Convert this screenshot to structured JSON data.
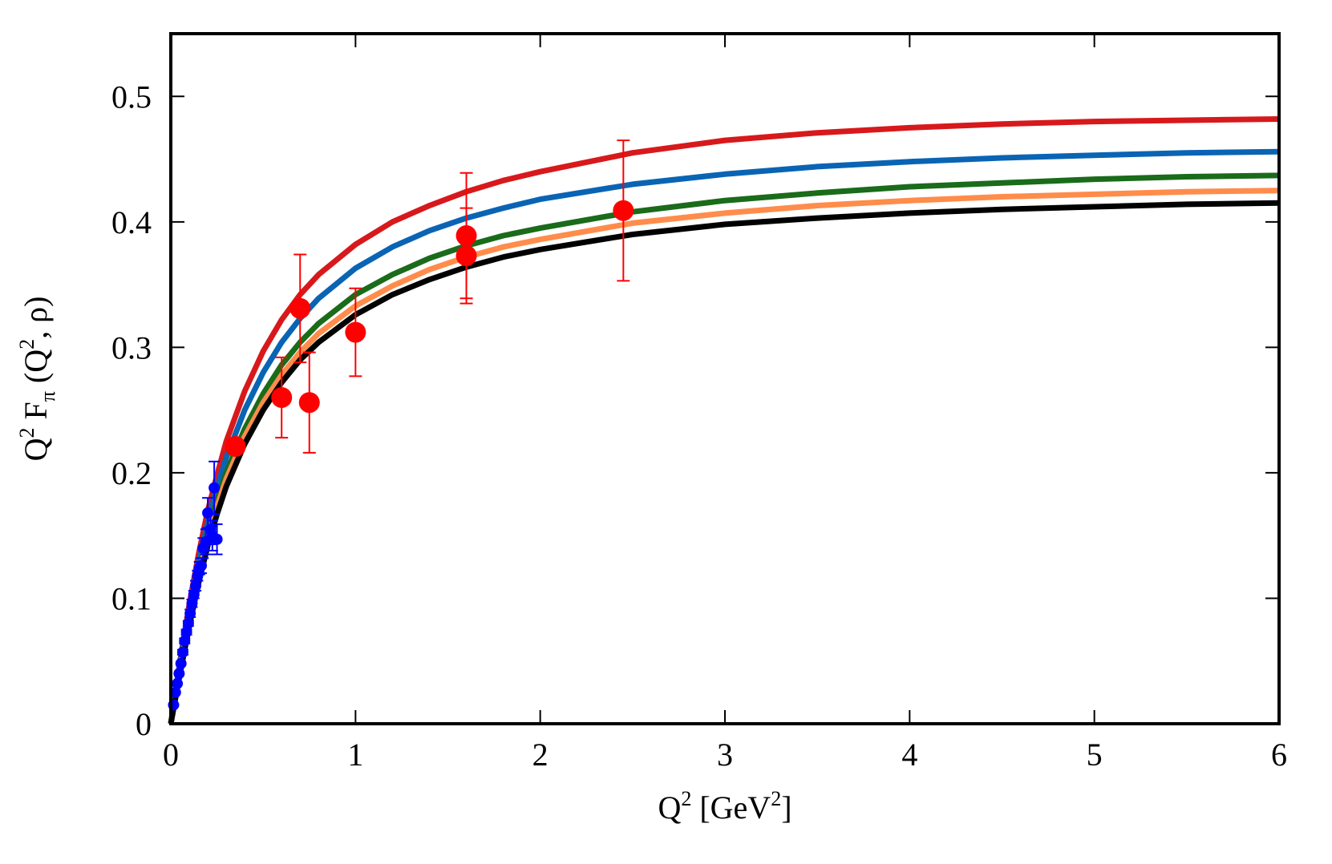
{
  "chart_data": {
    "type": "scatter",
    "xlabel": {
      "base": "Q",
      "sup": "2",
      "unit_open": " [GeV",
      "unit_sup": "2",
      "unit_close": "]"
    },
    "ylabel": {
      "q": "Q",
      "q_sup": "2",
      "f": " F",
      "f_sub": "π",
      "arg_open": " (Q",
      "arg_sup": "2",
      "arg_close": ", ρ)"
    },
    "xlim": [
      0,
      6
    ],
    "ylim": [
      0,
      0.55
    ],
    "xticks": [
      0,
      1,
      2,
      3,
      4,
      5,
      6
    ],
    "xtick_labels": [
      "0",
      "1",
      "2",
      "3",
      "4",
      "5",
      "6"
    ],
    "yticks": [
      0,
      0.1,
      0.2,
      0.3,
      0.4,
      0.5
    ],
    "ytick_labels": [
      "0",
      "0.1",
      "0.2",
      "0.3",
      "0.4",
      "0.5"
    ],
    "grid": false,
    "legend": "none",
    "curves": [
      {
        "color": "#d7191c",
        "x": [
          0.0,
          0.05,
          0.1,
          0.15,
          0.2,
          0.25,
          0.3,
          0.4,
          0.5,
          0.6,
          0.7,
          0.8,
          1.0,
          1.2,
          1.4,
          1.6,
          1.8,
          2.0,
          2.5,
          3.0,
          3.5,
          4.0,
          4.5,
          5.0,
          5.5,
          6.0
        ],
        "y": [
          0.0,
          0.05,
          0.095,
          0.135,
          0.17,
          0.198,
          0.225,
          0.265,
          0.297,
          0.322,
          0.342,
          0.358,
          0.382,
          0.4,
          0.413,
          0.424,
          0.433,
          0.44,
          0.455,
          0.465,
          0.471,
          0.475,
          0.478,
          0.48,
          0.481,
          0.482
        ]
      },
      {
        "color": "#0a64b4",
        "x": [
          0.0,
          0.05,
          0.1,
          0.15,
          0.2,
          0.25,
          0.3,
          0.4,
          0.5,
          0.6,
          0.7,
          0.8,
          1.0,
          1.2,
          1.4,
          1.6,
          1.8,
          2.0,
          2.5,
          3.0,
          3.5,
          4.0,
          4.5,
          5.0,
          5.5,
          6.0
        ],
        "y": [
          0.0,
          0.048,
          0.09,
          0.128,
          0.16,
          0.188,
          0.212,
          0.25,
          0.28,
          0.304,
          0.323,
          0.339,
          0.363,
          0.38,
          0.393,
          0.403,
          0.411,
          0.418,
          0.43,
          0.438,
          0.444,
          0.448,
          0.451,
          0.453,
          0.455,
          0.456
        ]
      },
      {
        "color": "#1a6b1a",
        "x": [
          0.0,
          0.05,
          0.1,
          0.15,
          0.2,
          0.25,
          0.3,
          0.4,
          0.5,
          0.6,
          0.7,
          0.8,
          1.0,
          1.2,
          1.4,
          1.6,
          1.8,
          2.0,
          2.5,
          3.0,
          3.5,
          4.0,
          4.5,
          5.0,
          5.5,
          6.0
        ],
        "y": [
          0.0,
          0.045,
          0.085,
          0.12,
          0.152,
          0.178,
          0.2,
          0.235,
          0.263,
          0.286,
          0.304,
          0.319,
          0.342,
          0.358,
          0.371,
          0.381,
          0.389,
          0.395,
          0.408,
          0.417,
          0.423,
          0.428,
          0.431,
          0.434,
          0.436,
          0.437
        ]
      },
      {
        "color": "#ff8c4a",
        "x": [
          0.0,
          0.05,
          0.1,
          0.15,
          0.2,
          0.25,
          0.3,
          0.4,
          0.5,
          0.6,
          0.7,
          0.8,
          1.0,
          1.2,
          1.4,
          1.6,
          1.8,
          2.0,
          2.5,
          3.0,
          3.5,
          4.0,
          4.5,
          5.0,
          5.5,
          6.0
        ],
        "y": [
          0.0,
          0.043,
          0.082,
          0.117,
          0.148,
          0.173,
          0.195,
          0.229,
          0.256,
          0.278,
          0.296,
          0.311,
          0.333,
          0.349,
          0.362,
          0.372,
          0.38,
          0.386,
          0.399,
          0.407,
          0.413,
          0.417,
          0.42,
          0.422,
          0.424,
          0.425
        ]
      },
      {
        "color": "#000000",
        "x": [
          0.0,
          0.05,
          0.1,
          0.15,
          0.2,
          0.25,
          0.3,
          0.4,
          0.5,
          0.6,
          0.7,
          0.8,
          1.0,
          1.2,
          1.4,
          1.6,
          1.8,
          2.0,
          2.5,
          3.0,
          3.5,
          4.0,
          4.5,
          5.0,
          5.5,
          6.0
        ],
        "y": [
          0.0,
          0.04,
          0.078,
          0.112,
          0.142,
          0.167,
          0.189,
          0.223,
          0.25,
          0.272,
          0.29,
          0.304,
          0.326,
          0.342,
          0.354,
          0.364,
          0.372,
          0.378,
          0.39,
          0.398,
          0.403,
          0.407,
          0.41,
          0.412,
          0.414,
          0.415
        ]
      }
    ],
    "series": [
      {
        "color": "#ff0000",
        "marker": "large-circle",
        "points": [
          {
            "x": 0.35,
            "y": 0.221,
            "err": 0.0
          },
          {
            "x": 0.6,
            "y": 0.26,
            "err": 0.032
          },
          {
            "x": 0.7,
            "y": 0.331,
            "err": 0.043
          },
          {
            "x": 0.75,
            "y": 0.256,
            "err": 0.04
          },
          {
            "x": 1.0,
            "y": 0.312,
            "err": 0.035
          },
          {
            "x": 1.6,
            "y": 0.389,
            "err": 0.05
          },
          {
            "x": 1.6,
            "y": 0.373,
            "err": 0.038
          },
          {
            "x": 2.45,
            "y": 0.409,
            "err": 0.056
          }
        ]
      },
      {
        "color": "#0000ff",
        "marker": "small-circle",
        "points": [
          {
            "x": 0.015,
            "y": 0.015,
            "err": 0.0
          },
          {
            "x": 0.025,
            "y": 0.025,
            "err": 0.0
          },
          {
            "x": 0.035,
            "y": 0.032,
            "err": 0.0
          },
          {
            "x": 0.045,
            "y": 0.04,
            "err": 0.0
          },
          {
            "x": 0.055,
            "y": 0.048,
            "err": 0.0
          },
          {
            "x": 0.065,
            "y": 0.057,
            "err": 0.002
          },
          {
            "x": 0.075,
            "y": 0.066,
            "err": 0.002
          },
          {
            "x": 0.085,
            "y": 0.073,
            "err": 0.002
          },
          {
            "x": 0.095,
            "y": 0.08,
            "err": 0.002
          },
          {
            "x": 0.105,
            "y": 0.088,
            "err": 0.003
          },
          {
            "x": 0.115,
            "y": 0.096,
            "err": 0.003
          },
          {
            "x": 0.125,
            "y": 0.103,
            "err": 0.003
          },
          {
            "x": 0.135,
            "y": 0.11,
            "err": 0.004
          },
          {
            "x": 0.145,
            "y": 0.118,
            "err": 0.004
          },
          {
            "x": 0.155,
            "y": 0.124,
            "err": 0.005
          },
          {
            "x": 0.165,
            "y": 0.126,
            "err": 0.006
          },
          {
            "x": 0.175,
            "y": 0.14,
            "err": 0.008
          },
          {
            "x": 0.19,
            "y": 0.145,
            "err": 0.01
          },
          {
            "x": 0.2,
            "y": 0.168,
            "err": 0.012
          },
          {
            "x": 0.215,
            "y": 0.155,
            "err": 0.012
          },
          {
            "x": 0.225,
            "y": 0.15,
            "err": 0.012
          },
          {
            "x": 0.235,
            "y": 0.188,
            "err": 0.021
          },
          {
            "x": 0.25,
            "y": 0.147,
            "err": 0.012
          }
        ]
      }
    ]
  }
}
